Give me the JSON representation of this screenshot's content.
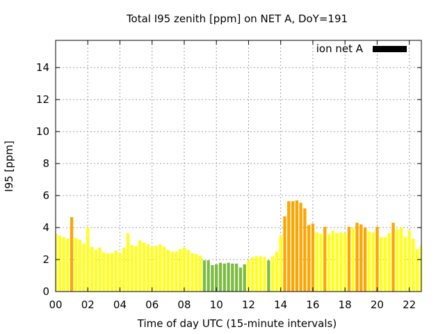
{
  "chart_data": {
    "type": "bar",
    "title": "Total I95 zenith [ppm] on NET A, DoY=191",
    "xlabel": "Time of day UTC (15-minute intervals)",
    "ylabel": "I95 [ppm]",
    "xlim": [
      0,
      22.75
    ],
    "ylim": [
      0,
      15.7
    ],
    "x_ticks": [
      {
        "value": 0,
        "label": "00"
      },
      {
        "value": 2,
        "label": "02"
      },
      {
        "value": 4,
        "label": "04"
      },
      {
        "value": 6,
        "label": "06"
      },
      {
        "value": 8,
        "label": "08"
      },
      {
        "value": 10,
        "label": "10"
      },
      {
        "value": 12,
        "label": "12"
      },
      {
        "value": 14,
        "label": "14"
      },
      {
        "value": 16,
        "label": "16"
      },
      {
        "value": 18,
        "label": "18"
      },
      {
        "value": 20,
        "label": "20"
      },
      {
        "value": 22,
        "label": "22"
      }
    ],
    "y_ticks": [
      0,
      2,
      4,
      6,
      8,
      10,
      12,
      14
    ],
    "grid": true,
    "legend": {
      "label": "ion net A",
      "color": "#000000",
      "placement": "top-right"
    },
    "interval_hours": 0.25,
    "colors": {
      "yellow": "#ffff1a",
      "orange": "#ffa500",
      "green": "#7dbb42"
    },
    "values": [
      3.6,
      3.5,
      3.4,
      3.3,
      4.65,
      3.35,
      3.25,
      3.0,
      4.0,
      2.8,
      2.6,
      2.75,
      2.45,
      2.4,
      2.4,
      2.55,
      2.4,
      2.75,
      3.65,
      2.9,
      2.85,
      3.2,
      3.05,
      2.95,
      2.8,
      2.85,
      2.95,
      2.8,
      2.6,
      2.5,
      2.5,
      2.65,
      2.75,
      2.6,
      2.4,
      2.35,
      2.25,
      1.95,
      1.95,
      1.65,
      1.7,
      1.8,
      1.75,
      1.8,
      1.75,
      1.75,
      1.5,
      1.7,
      1.95,
      2.15,
      2.2,
      2.2,
      2.15,
      1.95,
      2.2,
      2.5,
      3.5,
      4.7,
      5.65,
      5.65,
      5.7,
      5.55,
      5.2,
      4.15,
      4.25,
      3.7,
      3.6,
      4.05,
      3.6,
      3.8,
      3.65,
      3.7,
      3.65,
      4.05,
      3.95,
      4.3,
      4.2,
      4.0,
      3.75,
      3.7,
      4.05,
      3.4,
      3.4,
      3.65,
      4.3,
      3.9,
      4.0,
      3.4,
      3.85,
      3.3,
      2.65,
      2.9
    ],
    "bar_colors": [
      "yellow",
      "yellow",
      "yellow",
      "yellow",
      "orange",
      "yellow",
      "yellow",
      "yellow",
      "yellow",
      "yellow",
      "yellow",
      "yellow",
      "yellow",
      "yellow",
      "yellow",
      "yellow",
      "yellow",
      "yellow",
      "yellow",
      "yellow",
      "yellow",
      "yellow",
      "yellow",
      "yellow",
      "yellow",
      "yellow",
      "yellow",
      "yellow",
      "yellow",
      "yellow",
      "yellow",
      "yellow",
      "yellow",
      "yellow",
      "yellow",
      "yellow",
      "yellow",
      "green",
      "green",
      "green",
      "green",
      "green",
      "green",
      "green",
      "green",
      "green",
      "green",
      "green",
      "yellow",
      "yellow",
      "yellow",
      "yellow",
      "yellow",
      "green",
      "yellow",
      "yellow",
      "yellow",
      "orange",
      "orange",
      "orange",
      "orange",
      "orange",
      "orange",
      "orange",
      "orange",
      "yellow",
      "yellow",
      "orange",
      "yellow",
      "yellow",
      "yellow",
      "yellow",
      "yellow",
      "orange",
      "yellow",
      "orange",
      "orange",
      "orange",
      "yellow",
      "yellow",
      "orange",
      "yellow",
      "yellow",
      "yellow",
      "orange",
      "yellow",
      "yellow",
      "yellow",
      "yellow",
      "yellow",
      "yellow",
      "yellow"
    ]
  }
}
